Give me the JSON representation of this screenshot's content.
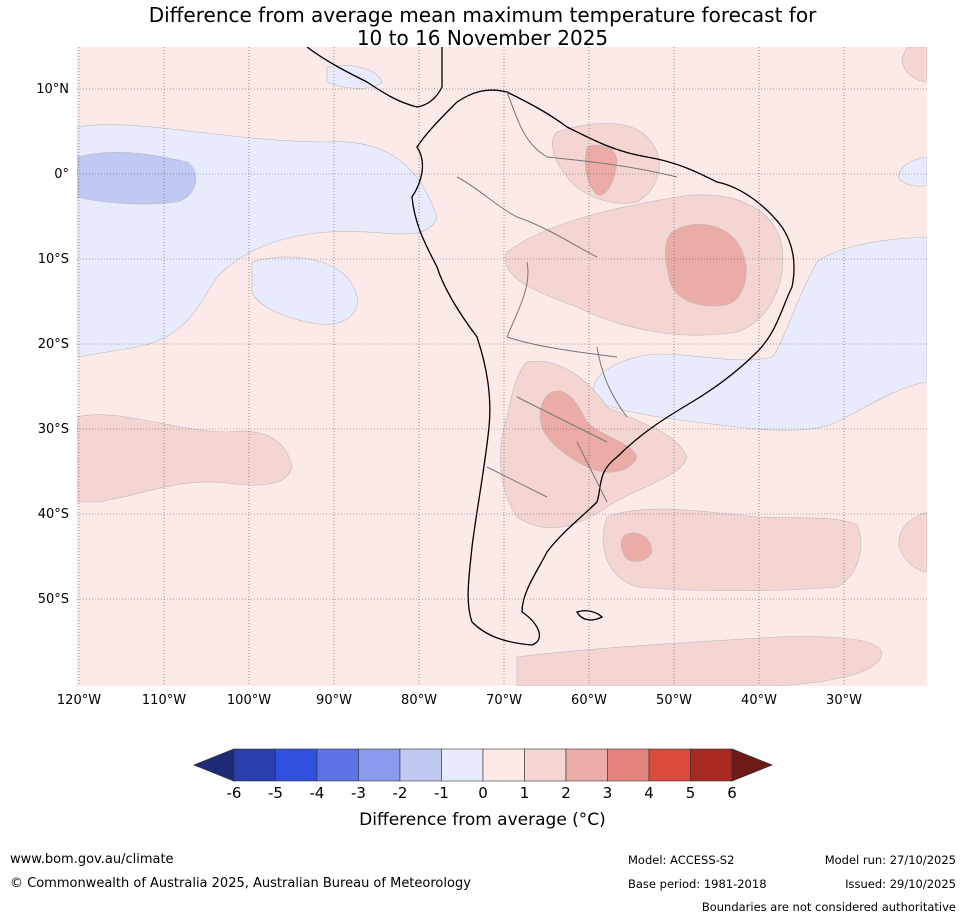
{
  "title_line1": "Difference from average mean maximum temperature forecast for",
  "title_line2": "10 to 16 November 2025",
  "lat_labels": [
    "10°N",
    "0°",
    "10°S",
    "20°S",
    "30°S",
    "40°S",
    "50°S"
  ],
  "lon_labels": [
    "120°W",
    "110°W",
    "100°W",
    "90°W",
    "80°W",
    "70°W",
    "60°W",
    "50°W",
    "40°W",
    "30°W"
  ],
  "colorbar": {
    "ticks": [
      "-6",
      "-5",
      "-4",
      "-3",
      "-2",
      "-1",
      "0",
      "1",
      "2",
      "3",
      "4",
      "5",
      "6"
    ],
    "colors": [
      "#2a3fae",
      "#3050e0",
      "#5e73e5",
      "#8a9aee",
      "#c0c8f4",
      "#e8ebfb",
      "#fbeae8",
      "#f5d5d2",
      "#ebaba7",
      "#e5847d",
      "#da4a3e",
      "#a92a22"
    ],
    "under_color": "#1c2a77",
    "over_color": "#6e1a17",
    "label": "Difference from average (°C)"
  },
  "map_colors": {
    "base": "#fbeae8",
    "neg1": "#e8ebfb",
    "neg2": "#c0c8f4",
    "pos1": "#f5d5d2",
    "pos2": "#ebaba7"
  },
  "footer": {
    "website": "www.bom.gov.au/climate",
    "copyright": "© Commonwealth of Australia 2025, Australian Bureau of Meteorology",
    "model": "Model: ACCESS-S2",
    "base_period": "Base period: 1981-2018",
    "model_run": "Model run: 27/10/2025",
    "issued": "Issued: 29/10/2025",
    "disclaimer": "Boundaries are not considered authoritative"
  }
}
